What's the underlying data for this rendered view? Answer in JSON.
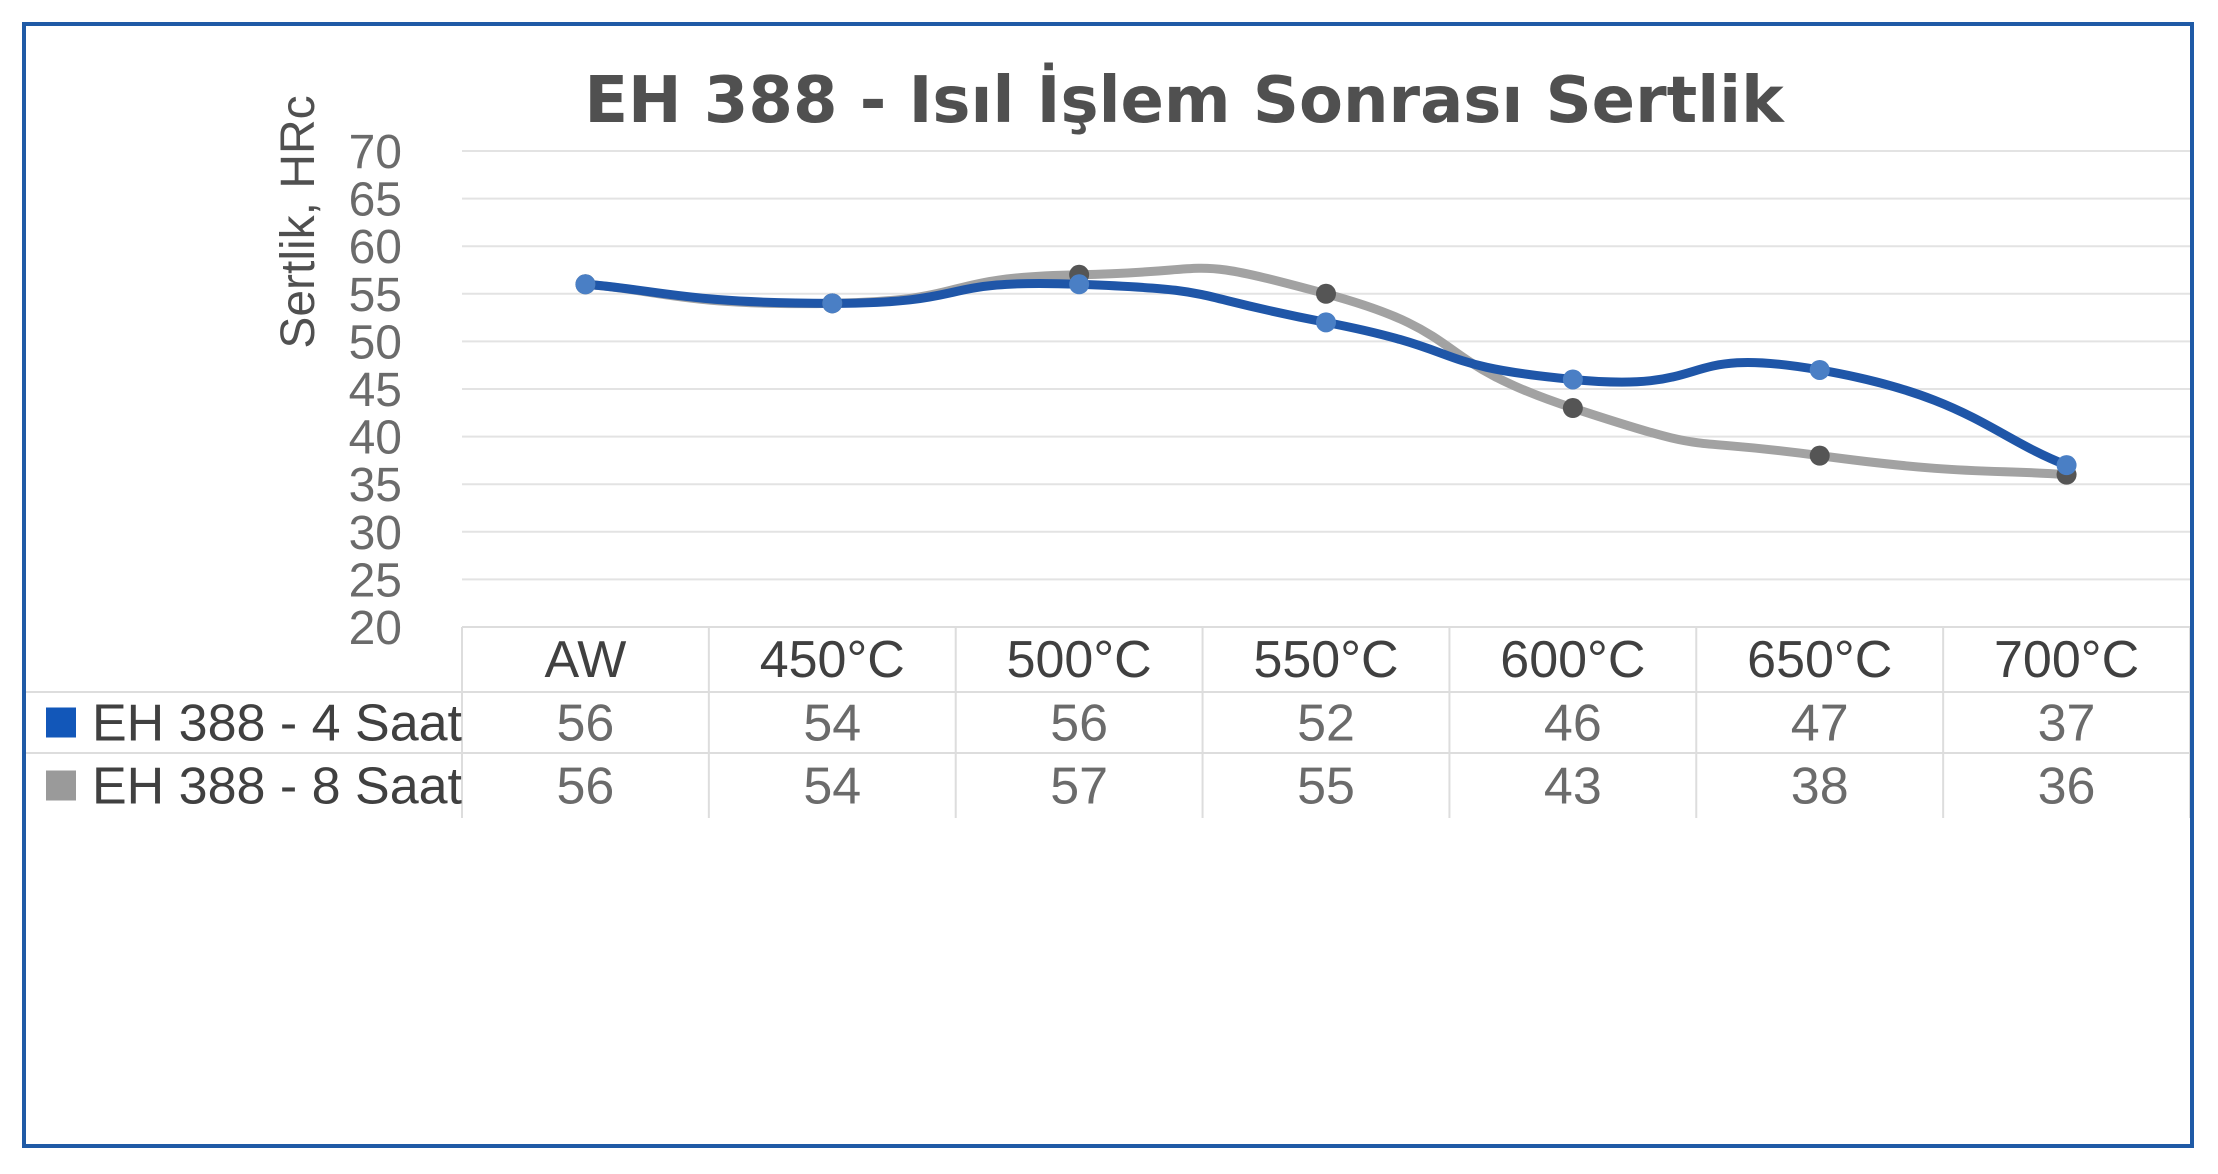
{
  "chart_data": {
    "type": "line",
    "title": "EH 388 - Isıl İşlem Sonrası Sertlik",
    "xlabel": "",
    "ylabel": "Sertlik, HRc",
    "ylim": [
      20,
      70
    ],
    "ytick_step": 5,
    "grid": true,
    "legend_placement": "data-table-left",
    "categories": [
      "AW",
      "450°C",
      "500°C",
      "550°C",
      "600°C",
      "650°C",
      "700°C"
    ],
    "series": [
      {
        "name": "EH 388 - 4 Saat",
        "values": [
          56,
          54,
          56,
          52,
          46,
          47,
          37
        ],
        "line_color": "#1f56a8",
        "marker_color": "#4a7fc5",
        "legend_color": "#1257b9"
      },
      {
        "name": "EH 388 - 8 Saat",
        "values": [
          56,
          54,
          57,
          55,
          43,
          38,
          36
        ],
        "line_color": "#a2a2a2",
        "marker_color": "#555555",
        "legend_color": "#9a9a9a"
      }
    ]
  }
}
